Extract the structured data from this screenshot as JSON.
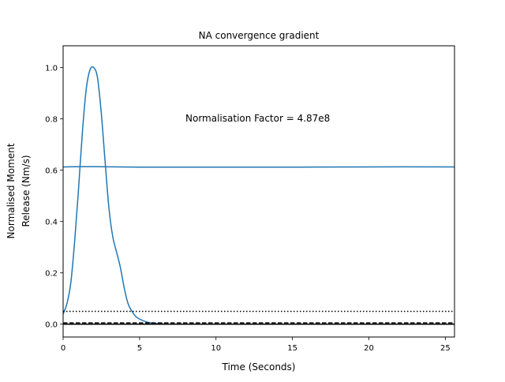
{
  "chart_data": {
    "type": "line",
    "title": "NA convergence gradient",
    "xlabel": "Time (Seconds)",
    "ylabel_lines": [
      "Normalised Moment",
      "Release (Nm/s)"
    ],
    "xlim": [
      0,
      25.6
    ],
    "ylim": [
      -0.05,
      1.085
    ],
    "x_ticks": [
      0,
      5,
      10,
      15,
      20,
      25
    ],
    "x_tick_labels": [
      "0",
      "5",
      "10",
      "15",
      "20",
      "25"
    ],
    "y_ticks": [
      0.0,
      0.2,
      0.4,
      0.6,
      0.8,
      1.0
    ],
    "y_tick_labels": [
      "0.0",
      "0.2",
      "0.4",
      "0.6",
      "0.8",
      "1.0"
    ],
    "grid": false,
    "annotation": {
      "text": "Normalisation Factor = 4.87e8",
      "x": 8.0,
      "y": 0.8
    },
    "series": [
      {
        "style": "solid",
        "color": "#1f77b4",
        "x": [
          0,
          0.25,
          0.5,
          0.75,
          1.0,
          1.25,
          1.5,
          1.75,
          2.0,
          2.25,
          2.5,
          2.75,
          3.0,
          3.25,
          3.5,
          3.75,
          4.0,
          4.25,
          4.5,
          4.75,
          5.0,
          5.5,
          6.0,
          6.5,
          7.0,
          8.0,
          10.0,
          15.0,
          20.0,
          25.6
        ],
        "y": [
          0.04,
          0.08,
          0.16,
          0.32,
          0.52,
          0.74,
          0.91,
          0.99,
          1.0,
          0.96,
          0.82,
          0.63,
          0.45,
          0.34,
          0.28,
          0.22,
          0.14,
          0.08,
          0.05,
          0.03,
          0.02,
          0.008,
          0.003,
          0.001,
          0.0,
          0.0,
          0.0,
          0.0,
          0.0,
          0.0
        ]
      },
      {
        "style": "solid",
        "color": "#1f77b4",
        "x": [
          0,
          2.0,
          5.0,
          10.0,
          15.0,
          20.0,
          25.6
        ],
        "y": [
          0.613,
          0.614,
          0.612,
          0.612,
          0.612,
          0.613,
          0.613
        ]
      },
      {
        "style": "dotted",
        "color": "#000000",
        "x": [
          0,
          25.6
        ],
        "y": [
          0.05,
          0.05
        ]
      },
      {
        "style": "dashed",
        "color": "#000000",
        "x": [
          0,
          25.6
        ],
        "y": [
          0.005,
          0.005
        ]
      },
      {
        "style": "solid",
        "color": "#000000",
        "x": [
          0,
          25.6
        ],
        "y": [
          0.0,
          0.0
        ]
      }
    ]
  }
}
